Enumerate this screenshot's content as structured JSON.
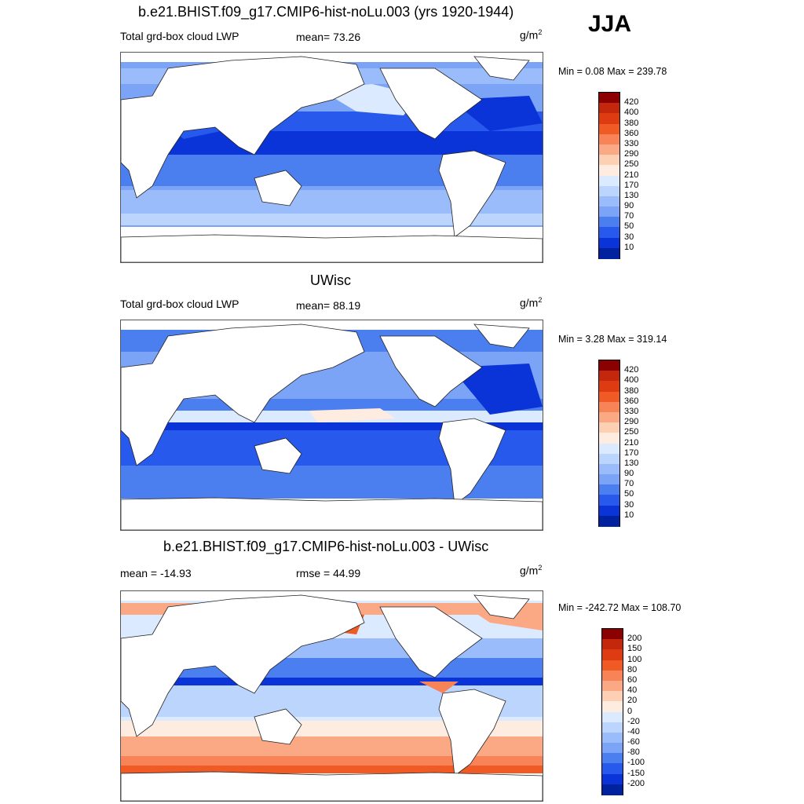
{
  "season": "JJA",
  "panels": [
    {
      "title": "b.e21.BHIST.f09_g17.CMIP6-hist-noLu.003 (yrs 1920-1944)",
      "left_label": "Total grd-box cloud LWP",
      "center_label": "mean=  73.26",
      "units_base": "g/m",
      "units_exp": "2",
      "minmax": "Min =   0.08 Max = 239.78",
      "colorbar_labels": [
        "420",
        "400",
        "380",
        "360",
        "330",
        "290",
        "250",
        "210",
        "170",
        "130",
        "90",
        "70",
        "50",
        "30",
        "10"
      ],
      "colors": [
        "#8b0000",
        "#c3270c",
        "#de3b12",
        "#f05a24",
        "#f88356",
        "#fba985",
        "#fdd0b4",
        "#fdecdf",
        "#dceaff",
        "#bcd5fd",
        "#9bbcfb",
        "#7ba3f6",
        "#4b7ff0",
        "#2659ec",
        "#0b34d8",
        "#00229e"
      ]
    },
    {
      "title": "UWisc",
      "left_label": "Total grd-box cloud LWP",
      "center_label": "mean=  88.19",
      "units_base": "g/m",
      "units_exp": "2",
      "minmax": "Min =   3.28 Max = 319.14",
      "colorbar_labels": [
        "420",
        "400",
        "380",
        "360",
        "330",
        "290",
        "250",
        "210",
        "170",
        "130",
        "90",
        "70",
        "50",
        "30",
        "10"
      ],
      "colors": [
        "#8b0000",
        "#c3270c",
        "#de3b12",
        "#f05a24",
        "#f88356",
        "#fba985",
        "#fdd0b4",
        "#fdecdf",
        "#dceaff",
        "#bcd5fd",
        "#9bbcfb",
        "#7ba3f6",
        "#4b7ff0",
        "#2659ec",
        "#0b34d8",
        "#00229e"
      ]
    },
    {
      "title": "b.e21.BHIST.f09_g17.CMIP6-hist-noLu.003 - UWisc",
      "left_label": "mean = -14.93",
      "center_label": "rmse =  44.99",
      "units_base": "g/m",
      "units_exp": "2",
      "minmax": "Min = -242.72 Max = 108.70",
      "colorbar_labels": [
        "200",
        "150",
        "100",
        "80",
        "60",
        "40",
        "20",
        "0",
        "-20",
        "-40",
        "-60",
        "-80",
        "-100",
        "-150",
        "-200"
      ],
      "colors": [
        "#8b0000",
        "#c3270c",
        "#de3b12",
        "#f05a24",
        "#f88356",
        "#fba985",
        "#fdd0b4",
        "#fdecdf",
        "#dceaff",
        "#bcd5fd",
        "#9bbcfb",
        "#7ba3f6",
        "#4b7ff0",
        "#2659ec",
        "#0b34d8",
        "#00229e"
      ]
    }
  ],
  "chart_data": [
    {
      "type": "heatmap",
      "title": "b.e21.BHIST.f09_g17.CMIP6-hist-noLu.003 (yrs 1920-1944)",
      "variable": "Total grd-box cloud LWP",
      "units": "g/m2",
      "mean": 73.26,
      "min": 0.08,
      "max": 239.78,
      "levels": [
        10,
        30,
        50,
        70,
        90,
        130,
        170,
        210,
        250,
        290,
        330,
        360,
        380,
        400,
        420
      ]
    },
    {
      "type": "heatmap",
      "title": "UWisc",
      "variable": "Total grd-box cloud LWP",
      "units": "g/m2",
      "mean": 88.19,
      "min": 3.28,
      "max": 319.14,
      "levels": [
        10,
        30,
        50,
        70,
        90,
        130,
        170,
        210,
        250,
        290,
        330,
        360,
        380,
        400,
        420
      ]
    },
    {
      "type": "heatmap",
      "title": "b.e21.BHIST.f09_g17.CMIP6-hist-noLu.003 - UWisc",
      "units": "g/m2",
      "mean": -14.93,
      "rmse": 44.99,
      "min": -242.72,
      "max": 108.7,
      "levels": [
        -200,
        -150,
        -100,
        -80,
        -60,
        -40,
        -20,
        0,
        20,
        40,
        60,
        80,
        100,
        150,
        200
      ]
    }
  ]
}
